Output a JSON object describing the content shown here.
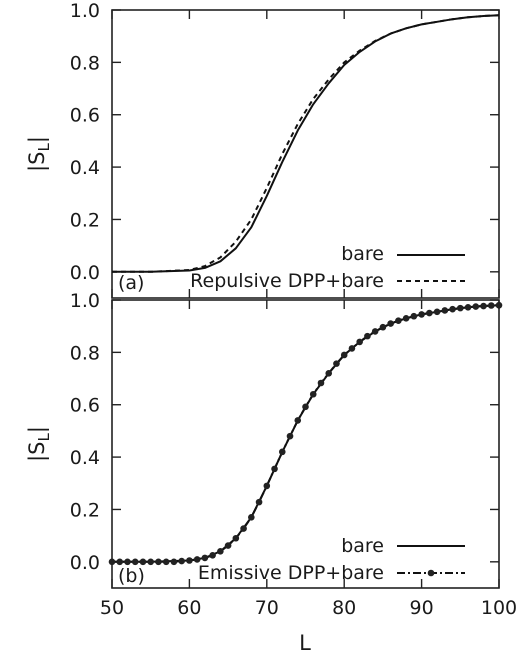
{
  "chart_data": [
    {
      "type": "line",
      "panel_label": "(a)",
      "ylabel": "|S",
      "ylabel_sub": "L",
      "ylabel_end": "|",
      "xlim": [
        50,
        100
      ],
      "ylim": [
        -0.1,
        1.0
      ],
      "y_ticks": [
        "0.0",
        "0.2",
        "0.4",
        "0.6",
        "0.8",
        "1.0"
      ],
      "series": [
        {
          "name": "bare",
          "style": "solid",
          "x": [
            50,
            55,
            60,
            62,
            64,
            66,
            68,
            70,
            72,
            74,
            76,
            78,
            80,
            82,
            84,
            86,
            88,
            90,
            92,
            94,
            96,
            98,
            100
          ],
          "y": [
            0.0,
            0.0,
            0.005,
            0.015,
            0.04,
            0.09,
            0.17,
            0.29,
            0.42,
            0.54,
            0.64,
            0.72,
            0.79,
            0.84,
            0.88,
            0.91,
            0.93,
            0.945,
            0.955,
            0.965,
            0.972,
            0.977,
            0.98
          ]
        },
        {
          "name": "Repulsive DPP+bare",
          "style": "dashed",
          "x": [
            50,
            55,
            60,
            62,
            64,
            66,
            68,
            70,
            72,
            74,
            76,
            78,
            80,
            82,
            84,
            86,
            88,
            90,
            92,
            94,
            96,
            98,
            100
          ],
          "y": [
            0.0,
            0.0,
            0.007,
            0.022,
            0.055,
            0.115,
            0.2,
            0.32,
            0.45,
            0.565,
            0.66,
            0.735,
            0.8,
            0.845,
            0.882,
            0.91,
            0.93,
            0.945,
            0.955,
            0.965,
            0.972,
            0.977,
            0.98
          ]
        }
      ]
    },
    {
      "type": "line",
      "panel_label": "(b)",
      "ylabel": "|S",
      "ylabel_sub": "L",
      "ylabel_end": "|",
      "xlabel": "L",
      "xlim": [
        50,
        100
      ],
      "ylim": [
        -0.1,
        1.0
      ],
      "x_ticks": [
        "50",
        "60",
        "70",
        "80",
        "90",
        "100"
      ],
      "y_ticks": [
        "0.0",
        "0.2",
        "0.4",
        "0.6",
        "0.8",
        "1.0"
      ],
      "series": [
        {
          "name": "bare",
          "style": "solid",
          "x": [
            50,
            55,
            60,
            62,
            64,
            66,
            68,
            70,
            72,
            74,
            76,
            78,
            80,
            82,
            84,
            86,
            88,
            90,
            92,
            94,
            96,
            98,
            100
          ],
          "y": [
            0.0,
            0.0,
            0.005,
            0.015,
            0.04,
            0.09,
            0.17,
            0.29,
            0.42,
            0.54,
            0.64,
            0.72,
            0.79,
            0.84,
            0.88,
            0.91,
            0.93,
            0.945,
            0.955,
            0.965,
            0.972,
            0.977,
            0.98
          ]
        },
        {
          "name": "Emissive DPP+bare",
          "style": "dash-dot-markers",
          "x": [
            50,
            51,
            52,
            53,
            54,
            55,
            56,
            57,
            58,
            59,
            60,
            61,
            62,
            63,
            64,
            65,
            66,
            67,
            68,
            69,
            70,
            71,
            72,
            73,
            74,
            75,
            76,
            77,
            78,
            79,
            80,
            81,
            82,
            83,
            84,
            85,
            86,
            87,
            88,
            89,
            90,
            91,
            92,
            93,
            94,
            95,
            96,
            97,
            98,
            99,
            100
          ],
          "y": [
            0.0,
            0.0,
            0.0,
            0.0,
            0.0,
            0.0,
            0.0,
            0.0,
            0.0,
            0.003,
            0.005,
            0.009,
            0.015,
            0.025,
            0.04,
            0.062,
            0.09,
            0.127,
            0.17,
            0.228,
            0.29,
            0.355,
            0.42,
            0.48,
            0.54,
            0.592,
            0.64,
            0.683,
            0.72,
            0.757,
            0.79,
            0.815,
            0.84,
            0.862,
            0.88,
            0.896,
            0.91,
            0.921,
            0.93,
            0.938,
            0.945,
            0.95,
            0.955,
            0.96,
            0.965,
            0.969,
            0.972,
            0.975,
            0.977,
            0.979,
            0.98
          ]
        }
      ]
    }
  ]
}
